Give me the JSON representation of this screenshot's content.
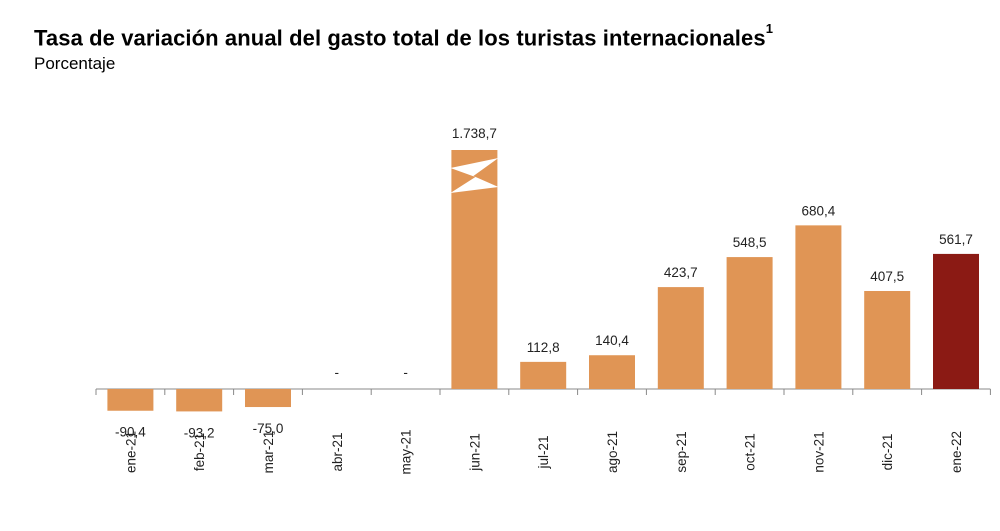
{
  "header": {
    "title": "Tasa de variación anual del gasto total de los turistas internacionales",
    "title_sup": "1",
    "subtitle": "Porcentaje"
  },
  "colors": {
    "bar": "#E09555",
    "highlight": "#8B1A14",
    "axis": "#888888"
  },
  "chart_data": {
    "type": "bar",
    "title": "Tasa de variación anual del gasto total de los turistas internacionales",
    "ylabel": "Porcentaje",
    "categories": [
      "ene-21",
      "feb-21",
      "mar-21",
      "abr-21",
      "may-21",
      "jun-21",
      "jul-21",
      "ago-21",
      "sep-21",
      "oct-21",
      "nov-21",
      "dic-21",
      "ene-22"
    ],
    "values": [
      -90.4,
      -93.2,
      -75.0,
      null,
      null,
      1738.7,
      112.8,
      140.4,
      423.7,
      548.5,
      680.4,
      407.5,
      561.7
    ],
    "labels": [
      "-90,4",
      "-93,2",
      "-75,0",
      "-",
      "-",
      "1.738,7",
      "112,8",
      "140,4",
      "423,7",
      "548,5",
      "680,4",
      "407,5",
      "561,7"
    ],
    "highlight_index": 12,
    "broken_axis_bar_index": 5,
    "grid": false,
    "legend": "none"
  }
}
